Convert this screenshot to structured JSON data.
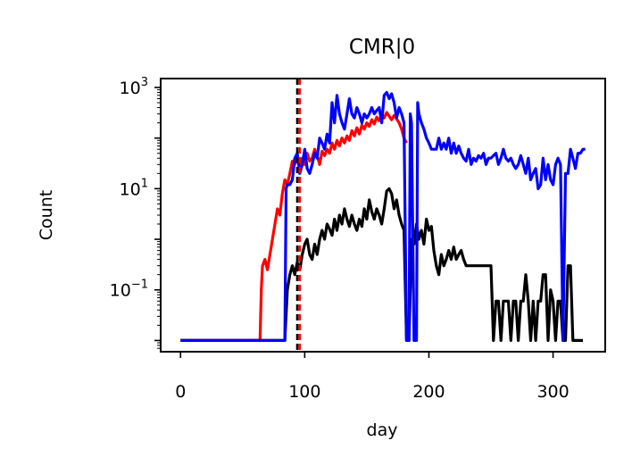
{
  "chart_data": {
    "type": "line",
    "title": "CMR|0",
    "xlabel": "day",
    "ylabel": "Count",
    "xlim": [
      -16,
      342
    ],
    "ylim": [
      0.006,
      1500
    ],
    "yscale": "log",
    "grid": false,
    "legend": "none",
    "x_ticks": [
      0,
      100,
      200,
      300
    ],
    "x_tick_labels": [
      "0",
      "100",
      "200",
      "300"
    ],
    "y_ticks": [
      {
        "value": 0.1,
        "base": "10",
        "exp": "−1"
      },
      {
        "value": 10,
        "base": "10",
        "exp": "1"
      },
      {
        "value": 1000,
        "base": "10",
        "exp": "3"
      }
    ],
    "vlines": [
      {
        "x": 94,
        "color": "#000000",
        "style": "dashed"
      },
      {
        "x": 96,
        "color": "#ff0000",
        "style": "dashed"
      }
    ],
    "series": [
      {
        "color": "#ff0000",
        "points": [
          [
            0,
            0.01
          ],
          [
            64,
            0.01
          ],
          [
            65,
            0.1
          ],
          [
            66,
            0.3
          ],
          [
            68,
            0.4
          ],
          [
            70,
            0.25
          ],
          [
            72,
            0.5
          ],
          [
            74,
            1
          ],
          [
            76,
            2
          ],
          [
            78,
            4
          ],
          [
            80,
            3
          ],
          [
            82,
            8
          ],
          [
            84,
            15
          ],
          [
            86,
            12
          ],
          [
            88,
            20
          ],
          [
            90,
            35
          ],
          [
            92,
            30
          ],
          [
            94,
            45
          ],
          [
            96,
            25
          ],
          [
            98,
            40
          ],
          [
            100,
            30
          ],
          [
            102,
            50
          ],
          [
            104,
            35
          ],
          [
            106,
            40
          ],
          [
            108,
            60
          ],
          [
            110,
            45
          ],
          [
            112,
            30
          ],
          [
            114,
            55
          ],
          [
            116,
            45
          ],
          [
            118,
            60
          ],
          [
            120,
            50
          ],
          [
            122,
            80
          ],
          [
            124,
            60
          ],
          [
            126,
            90
          ],
          [
            128,
            70
          ],
          [
            130,
            100
          ],
          [
            132,
            80
          ],
          [
            134,
            110
          ],
          [
            136,
            90
          ],
          [
            138,
            140
          ],
          [
            140,
            110
          ],
          [
            142,
            160
          ],
          [
            144,
            120
          ],
          [
            146,
            180
          ],
          [
            148,
            150
          ],
          [
            150,
            200
          ],
          [
            152,
            170
          ],
          [
            154,
            230
          ],
          [
            156,
            190
          ],
          [
            158,
            260
          ],
          [
            160,
            220
          ],
          [
            162,
            290
          ],
          [
            164,
            250
          ],
          [
            166,
            320
          ],
          [
            168,
            270
          ],
          [
            170,
            230
          ],
          [
            172,
            280
          ],
          [
            174,
            240
          ],
          [
            176,
            200
          ],
          [
            178,
            150
          ],
          [
            180,
            100
          ],
          [
            182,
            80
          ]
        ]
      },
      {
        "color": "#000000",
        "points": [
          [
            0,
            0.01
          ],
          [
            80,
            0.01
          ],
          [
            84,
            0.01
          ],
          [
            86,
            0.1
          ],
          [
            88,
            0.2
          ],
          [
            90,
            0.3
          ],
          [
            92,
            0.2
          ],
          [
            94,
            0.35
          ],
          [
            96,
            0.25
          ],
          [
            98,
            0.5
          ],
          [
            100,
            0.8
          ],
          [
            102,
            1.0
          ],
          [
            104,
            0.5
          ],
          [
            106,
            0.4
          ],
          [
            108,
            0.8
          ],
          [
            110,
            0.5
          ],
          [
            112,
            1.0
          ],
          [
            114,
            1.5
          ],
          [
            116,
            1.0
          ],
          [
            118,
            2.0
          ],
          [
            120,
            1.6
          ],
          [
            122,
            1.2
          ],
          [
            124,
            2.5
          ],
          [
            126,
            1.5
          ],
          [
            128,
            3.0
          ],
          [
            130,
            2.0
          ],
          [
            132,
            4.0
          ],
          [
            134,
            2.5
          ],
          [
            136,
            1.8
          ],
          [
            138,
            3.0
          ],
          [
            140,
            2.0
          ],
          [
            142,
            1.5
          ],
          [
            144,
            2.5
          ],
          [
            146,
            1.8
          ],
          [
            148,
            4.0
          ],
          [
            150,
            2.5
          ],
          [
            152,
            6.0
          ],
          [
            154,
            3.5
          ],
          [
            156,
            2.5
          ],
          [
            158,
            4.0
          ],
          [
            160,
            3.0
          ],
          [
            162,
            2.0
          ],
          [
            164,
            4.0
          ],
          [
            166,
            9.0
          ],
          [
            168,
            10.0
          ],
          [
            170,
            8.0
          ],
          [
            172,
            4.0
          ],
          [
            174,
            6.0
          ],
          [
            176,
            3.0
          ],
          [
            178,
            2.0
          ],
          [
            180,
            1.5
          ],
          [
            182,
            0.01
          ],
          [
            184,
            0.01
          ],
          [
            186,
            1.0
          ],
          [
            188,
            0.8
          ],
          [
            190,
            2.0
          ],
          [
            192,
            1.0
          ],
          [
            194,
            1.5
          ],
          [
            196,
            0.8
          ],
          [
            198,
            2.5
          ],
          [
            200,
            1.5
          ],
          [
            202,
            1.8
          ],
          [
            204,
            0.6
          ],
          [
            206,
            0.3
          ],
          [
            208,
            0.2
          ],
          [
            210,
            0.5
          ],
          [
            212,
            0.3
          ],
          [
            214,
            0.4
          ],
          [
            216,
            0.6
          ],
          [
            218,
            0.4
          ],
          [
            220,
            0.7
          ],
          [
            222,
            0.4
          ],
          [
            224,
            0.5
          ],
          [
            226,
            0.6
          ],
          [
            228,
            0.4
          ],
          [
            230,
            0.3
          ],
          [
            232,
            0.3
          ],
          [
            234,
            0.3
          ],
          [
            236,
            0.3
          ],
          [
            238,
            0.3
          ],
          [
            240,
            0.3
          ],
          [
            242,
            0.3
          ],
          [
            244,
            0.3
          ],
          [
            246,
            0.3
          ],
          [
            248,
            0.3
          ],
          [
            250,
            0.3
          ],
          [
            252,
            0.01
          ],
          [
            254,
            0.06
          ],
          [
            256,
            0.06
          ],
          [
            258,
            0.01
          ],
          [
            260,
            0.06
          ],
          [
            262,
            0.06
          ],
          [
            264,
            0.06
          ],
          [
            266,
            0.01
          ],
          [
            268,
            0.06
          ],
          [
            270,
            0.06
          ],
          [
            272,
            0.01
          ],
          [
            274,
            0.06
          ],
          [
            276,
            0.06
          ],
          [
            278,
            0.2
          ],
          [
            280,
            0.06
          ],
          [
            282,
            0.01
          ],
          [
            284,
            0.06
          ],
          [
            286,
            0.01
          ],
          [
            288,
            0.06
          ],
          [
            290,
            0.06
          ],
          [
            292,
            0.2
          ],
          [
            294,
            0.2
          ],
          [
            296,
            0.01
          ],
          [
            298,
            0.1
          ],
          [
            300,
            0.06
          ],
          [
            302,
            0.01
          ],
          [
            304,
            0.06
          ],
          [
            306,
            0.06
          ],
          [
            308,
            0.01
          ],
          [
            310,
            0.01
          ],
          [
            312,
            0.3
          ],
          [
            314,
            0.3
          ],
          [
            316,
            0.01
          ],
          [
            318,
            0.01
          ],
          [
            320,
            0.01
          ],
          [
            322,
            0.01
          ],
          [
            324,
            0.01
          ]
        ]
      },
      {
        "color": "#0000ff",
        "points": [
          [
            0,
            0.01
          ],
          [
            84,
            0.01
          ],
          [
            85,
            10
          ],
          [
            86,
            12
          ],
          [
            88,
            12
          ],
          [
            90,
            15
          ],
          [
            92,
            40
          ],
          [
            94,
            50
          ],
          [
            96,
            20
          ],
          [
            98,
            30
          ],
          [
            100,
            60
          ],
          [
            102,
            25
          ],
          [
            104,
            20
          ],
          [
            106,
            30
          ],
          [
            108,
            50
          ],
          [
            110,
            40
          ],
          [
            112,
            100
          ],
          [
            114,
            80
          ],
          [
            116,
            60
          ],
          [
            118,
            120
          ],
          [
            120,
            80
          ],
          [
            122,
            500
          ],
          [
            124,
            200
          ],
          [
            126,
            700
          ],
          [
            128,
            300
          ],
          [
            130,
            200
          ],
          [
            132,
            150
          ],
          [
            134,
            300
          ],
          [
            136,
            600
          ],
          [
            138,
            300
          ],
          [
            140,
            250
          ],
          [
            142,
            400
          ],
          [
            144,
            300
          ],
          [
            146,
            200
          ],
          [
            148,
            300
          ],
          [
            150,
            250
          ],
          [
            152,
            300
          ],
          [
            154,
            400
          ],
          [
            156,
            300
          ],
          [
            158,
            350
          ],
          [
            160,
            400
          ],
          [
            162,
            200
          ],
          [
            164,
            700
          ],
          [
            166,
            800
          ],
          [
            168,
            600
          ],
          [
            170,
            750
          ],
          [
            172,
            500
          ],
          [
            174,
            250
          ],
          [
            176,
            400
          ],
          [
            178,
            300
          ],
          [
            180,
            200
          ],
          [
            182,
            0.01
          ],
          [
            184,
            0.01
          ],
          [
            185,
            300
          ],
          [
            186,
            200
          ],
          [
            188,
            0.01
          ],
          [
            190,
            0.01
          ],
          [
            191,
            500
          ],
          [
            192,
            300
          ],
          [
            194,
            200
          ],
          [
            196,
            150
          ],
          [
            198,
            100
          ],
          [
            200,
            80
          ],
          [
            202,
            60
          ],
          [
            204,
            60
          ],
          [
            206,
            60
          ],
          [
            208,
            100
          ],
          [
            210,
            60
          ],
          [
            212,
            80
          ],
          [
            214,
            60
          ],
          [
            216,
            100
          ],
          [
            218,
            50
          ],
          [
            220,
            80
          ],
          [
            222,
            50
          ],
          [
            224,
            70
          ],
          [
            226,
            50
          ],
          [
            228,
            40
          ],
          [
            230,
            35
          ],
          [
            232,
            60
          ],
          [
            234,
            30
          ],
          [
            236,
            40
          ],
          [
            238,
            35
          ],
          [
            240,
            45
          ],
          [
            242,
            40
          ],
          [
            244,
            50
          ],
          [
            246,
            30
          ],
          [
            248,
            40
          ],
          [
            250,
            40
          ],
          [
            252,
            45
          ],
          [
            254,
            50
          ],
          [
            256,
            30
          ],
          [
            258,
            40
          ],
          [
            260,
            60
          ],
          [
            262,
            40
          ],
          [
            264,
            35
          ],
          [
            266,
            40
          ],
          [
            268,
            30
          ],
          [
            270,
            25
          ],
          [
            272,
            30
          ],
          [
            274,
            45
          ],
          [
            276,
            30
          ],
          [
            278,
            20
          ],
          [
            280,
            40
          ],
          [
            282,
            15
          ],
          [
            284,
            20
          ],
          [
            286,
            25
          ],
          [
            288,
            10
          ],
          [
            290,
            12
          ],
          [
            292,
            40
          ],
          [
            294,
            15
          ],
          [
            296,
            30
          ],
          [
            298,
            15
          ],
          [
            300,
            12
          ],
          [
            302,
            30
          ],
          [
            304,
            40
          ],
          [
            306,
            30
          ],
          [
            308,
            0.01
          ],
          [
            310,
            20
          ],
          [
            312,
            20
          ],
          [
            314,
            60
          ],
          [
            316,
            40
          ],
          [
            318,
            25
          ],
          [
            320,
            50
          ],
          [
            322,
            50
          ],
          [
            324,
            60
          ],
          [
            326,
            60
          ]
        ]
      }
    ]
  }
}
